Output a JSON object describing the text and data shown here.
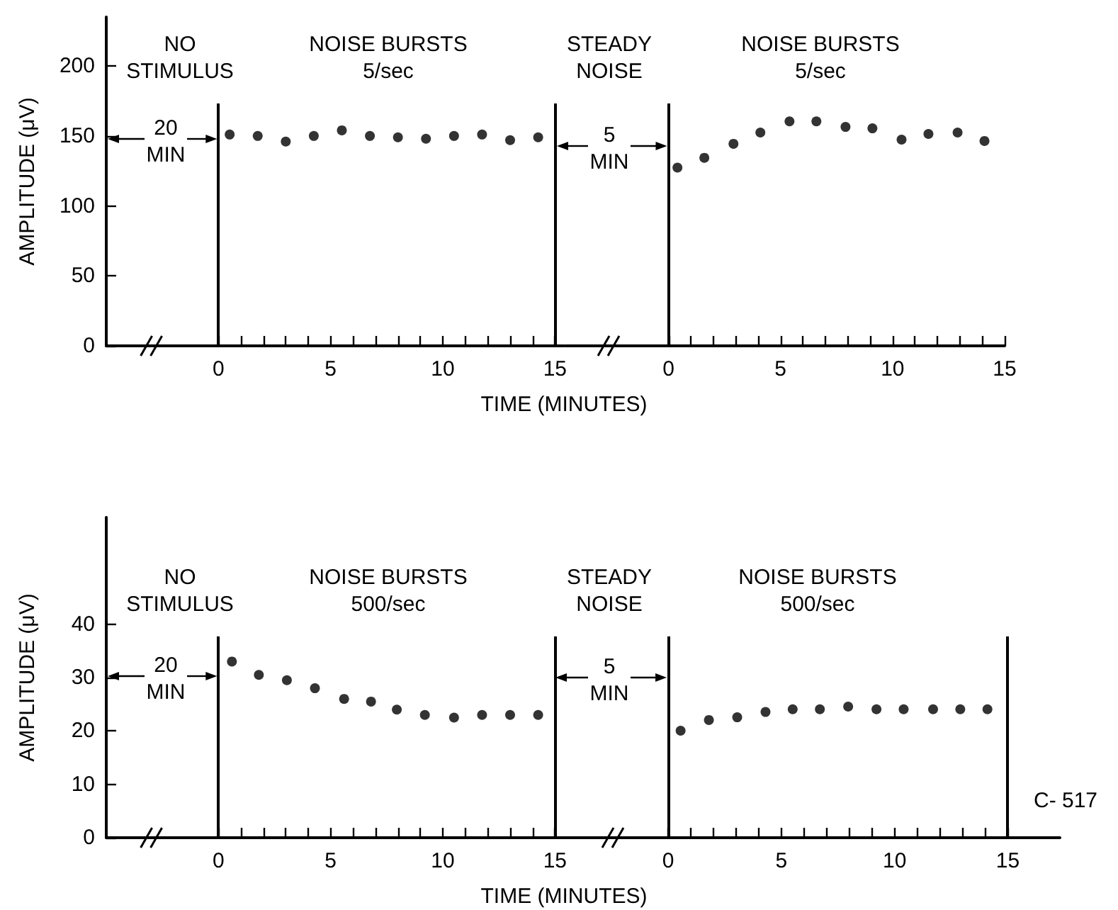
{
  "chart_data": [
    {
      "type": "scatter",
      "ylabel": "AMPLITUDE (μV)",
      "xlabel": "TIME (MINUTES)",
      "marker": "circle",
      "xlim": [
        -5,
        15.4
      ],
      "ylim": [
        0,
        235
      ],
      "xticks": [
        0,
        {
          "value": 1,
          "label": null
        },
        {
          "value": 2,
          "label": null
        },
        {
          "value": 3,
          "label": null
        },
        {
          "value": 4,
          "label": null
        },
        5,
        {
          "value": 6,
          "label": null
        },
        {
          "value": 7,
          "label": null
        },
        {
          "value": 8,
          "label": null
        },
        {
          "value": 9,
          "label": null
        },
        10,
        {
          "value": 11,
          "label": null
        },
        {
          "value": 12,
          "label": null
        },
        {
          "value": 13,
          "label": null
        },
        {
          "value": 14,
          "label": null
        },
        15
      ],
      "yticks": [
        0,
        50,
        100,
        150,
        200
      ],
      "series": [
        {
          "color": "#000000",
          "x": [
            0.5,
            1.75,
            3,
            4.25,
            5.5,
            6.75,
            8,
            9.25,
            10.5,
            11.75,
            13,
            14.25
          ],
          "values": [
            151,
            150,
            146,
            150,
            154,
            150,
            149,
            148,
            150,
            151,
            147,
            149
          ]
        }
      ],
      "ref_lines": [
        {
          "axis": "x",
          "value": 0
        },
        {
          "axis": "x",
          "value": 15
        }
      ],
      "annotations": [
        "NO\nSTIMULUS",
        "NOISE BURSTS\n5/sec",
        "20\nMIN"
      ]
    },
    {
      "type": "scatter",
      "marker": "circle",
      "xlim": [
        -4.6,
        15
      ],
      "ylim": [
        0,
        200
      ],
      "yticks": [
        0,
        50,
        100,
        150,
        200
      ],
      "tick_labels": "x",
      "xticks": [
        0,
        {
          "value": 1,
          "label": null
        },
        {
          "value": 2,
          "label": null
        },
        {
          "value": 3,
          "label": null
        },
        {
          "value": 4,
          "label": null
        },
        5,
        {
          "value": 6,
          "label": null
        },
        {
          "value": 7,
          "label": null
        },
        {
          "value": 8,
          "label": null
        },
        {
          "value": 9,
          "label": null
        },
        10,
        {
          "value": 11,
          "label": null
        },
        {
          "value": 12,
          "label": null
        },
        {
          "value": 13,
          "label": null
        },
        {
          "value": 14,
          "label": null
        },
        15
      ],
      "series": [
        {
          "color": "#000000",
          "x": [
            0.4,
            1.6,
            2.9,
            4.1,
            5.4,
            6.6,
            7.9,
            9.1,
            10.4,
            11.6,
            12.9,
            14.1
          ],
          "values": [
            127,
            134,
            144,
            152,
            160,
            160,
            156,
            155,
            147,
            151,
            152,
            146
          ]
        }
      ],
      "ref_lines": [
        {
          "axis": "x",
          "value": 0
        }
      ],
      "annotations": [
        "STEADY\nNOISE",
        "NOISE BURSTS\n5/sec",
        "5\nMIN"
      ]
    },
    {
      "type": "scatter",
      "ylabel": "AMPLITUDE (μV)",
      "xlabel": "TIME (MINUTES)",
      "marker": "circle",
      "xlim": [
        -5,
        15.4
      ],
      "ylim": [
        0,
        60
      ],
      "xticks": [
        0,
        {
          "value": 1,
          "label": null
        },
        {
          "value": 2,
          "label": null
        },
        {
          "value": 3,
          "label": null
        },
        {
          "value": 4,
          "label": null
        },
        5,
        {
          "value": 6,
          "label": null
        },
        {
          "value": 7,
          "label": null
        },
        {
          "value": 8,
          "label": null
        },
        {
          "value": 9,
          "label": null
        },
        10,
        {
          "value": 11,
          "label": null
        },
        {
          "value": 12,
          "label": null
        },
        {
          "value": 13,
          "label": null
        },
        {
          "value": 14,
          "label": null
        },
        15
      ],
      "yticks": [
        0,
        10,
        20,
        30,
        40
      ],
      "series": [
        {
          "color": "#000000",
          "x": [
            0.6,
            1.8,
            3.05,
            4.3,
            5.6,
            6.8,
            7.95,
            9.2,
            10.5,
            11.75,
            13,
            14.25
          ],
          "values": [
            33,
            30.5,
            29.5,
            28,
            26,
            25.5,
            24,
            23,
            22.5,
            23,
            23,
            23
          ]
        }
      ],
      "ref_lines": [
        {
          "axis": "x",
          "value": 0
        },
        {
          "axis": "x",
          "value": 15
        }
      ],
      "annotations": [
        "NO\nSTIMULUS",
        "NOISE BURSTS\n500/sec",
        "20\nMIN"
      ]
    },
    {
      "type": "scatter",
      "marker": "circle",
      "xlim": [
        -4.6,
        17.3
      ],
      "ylim": [
        0,
        40
      ],
      "yticks": [
        0,
        10,
        20,
        30,
        40
      ],
      "tick_labels": "x",
      "xticks": [
        0,
        {
          "value": 1,
          "label": null
        },
        {
          "value": 2,
          "label": null
        },
        {
          "value": 3,
          "label": null
        },
        {
          "value": 4,
          "label": null
        },
        5,
        {
          "value": 6,
          "label": null
        },
        {
          "value": 7,
          "label": null
        },
        {
          "value": 8,
          "label": null
        },
        {
          "value": 9,
          "label": null
        },
        10,
        {
          "value": 11,
          "label": null
        },
        {
          "value": 12,
          "label": null
        },
        {
          "value": 13,
          "label": null
        },
        {
          "value": 14,
          "label": null
        },
        15
      ],
      "series": [
        {
          "color": "#000000",
          "x": [
            0.55,
            1.8,
            3.05,
            4.3,
            5.5,
            6.7,
            7.95,
            9.2,
            10.4,
            11.7,
            12.9,
            14.1
          ],
          "values": [
            20,
            22,
            22.5,
            23.5,
            24,
            24,
            24.5,
            24,
            24,
            24,
            24,
            24
          ]
        }
      ],
      "ref_lines": [
        {
          "axis": "x",
          "value": 0
        },
        {
          "axis": "x",
          "value": 15
        }
      ],
      "annotations": [
        "STEADY\nNOISE",
        "NOISE BURSTS\n500/sec",
        "5\nMIN",
        "C- 517"
      ]
    }
  ]
}
